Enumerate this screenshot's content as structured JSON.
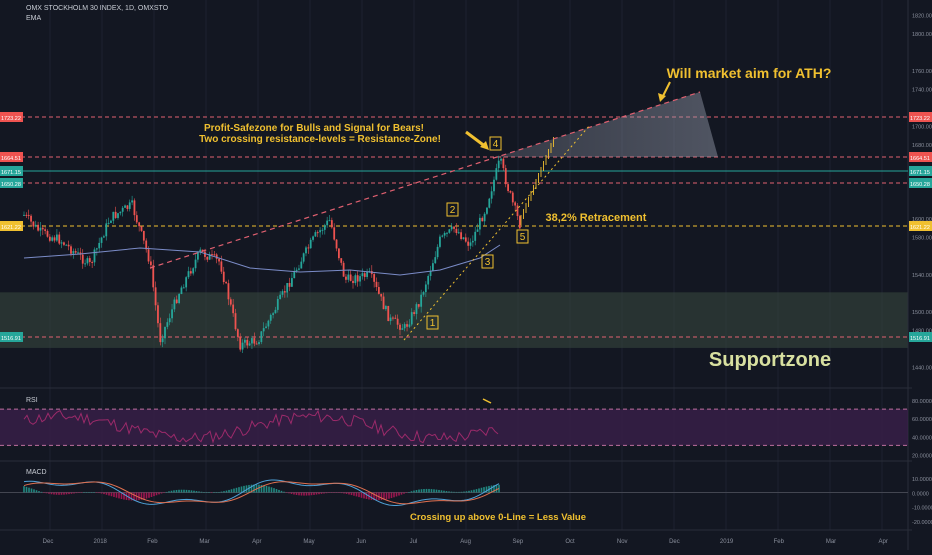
{
  "header": {
    "symbol": "OMX STOCKHOLM 30 INDEX, 1D, OMXSTO",
    "indicator": "EMA"
  },
  "annotations": {
    "ath_question": "Will market aim for ATH?",
    "zone_line1": "Profit-Safezone for Bulls and Signal for Bears!",
    "zone_line2": "Two crossing resistance-levels = Resistance-Zone!",
    "retracement": "38,2% Retracement",
    "supportzone": "Supportzone",
    "macd_note": "Crossing up above 0-Line = Less Value"
  },
  "panes": {
    "rsi": "RSI",
    "macd": "MACD"
  },
  "colors": {
    "background": "#131722",
    "up": "#26a69a",
    "down": "#ef5350",
    "ema": "#7b8cc8",
    "annotation": "#f0c030",
    "support": "#3a4a40",
    "resistance_dash": "#e06070",
    "rsi_band": "#3a1f4a",
    "rsi_line": "#9c2a6a",
    "macd_line": "#4fa3d9",
    "signal_line": "#e07050"
  },
  "chart_data": [
    {
      "type": "candlestick",
      "title": "OMX STOCKHOLM 30 INDEX, 1D, OMXSTO",
      "ylim": [
        1420,
        1830
      ],
      "y_ticks": [
        1440.0,
        1480.0,
        1500.0,
        1540.0,
        1580.0,
        1600.0,
        1640.0,
        1680.0,
        1700.0,
        1740.0,
        1760.0,
        1800.0,
        1820.0
      ],
      "x_ticks": [
        "Dec",
        "2018",
        "Feb",
        "Mar",
        "Apr",
        "May",
        "Jun",
        "Jul",
        "Aug",
        "Sep",
        "Oct",
        "Nov",
        "Dec",
        "2019",
        "Feb",
        "Mar",
        "Apr"
      ],
      "price_labels": [
        {
          "value": "1723.22",
          "color": "#ef5350"
        },
        {
          "value": "1664.51",
          "color": "#ef5350"
        },
        {
          "value": "1671.15",
          "color": "#26a69a"
        },
        {
          "value": "1650.28",
          "color": "#26a69a"
        },
        {
          "value": "1621.22",
          "color": "#f0c030"
        },
        {
          "value": "1516.91",
          "color": "#26a69a"
        }
      ],
      "support_zone": [
        1460,
        1520
      ],
      "wave_labels": [
        "1",
        "2",
        "3",
        "4",
        "5"
      ],
      "grid": true
    },
    {
      "type": "line",
      "name": "RSI",
      "ylim": [
        15,
        90
      ],
      "y_ticks": [
        80.0,
        60.0,
        40.0,
        20.0
      ],
      "band": [
        30,
        70
      ]
    },
    {
      "type": "histogram+line",
      "name": "MACD",
      "ylim": [
        -25,
        20
      ],
      "y_ticks": [
        10.0,
        0.0,
        -10.0,
        -20.0
      ]
    }
  ]
}
